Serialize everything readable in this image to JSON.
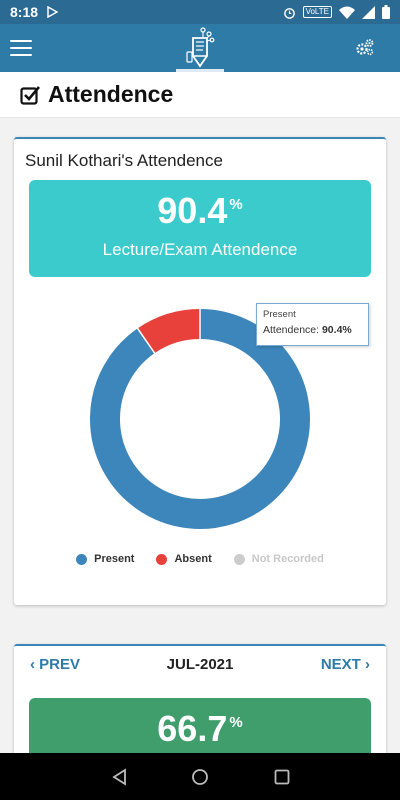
{
  "status_bar": {
    "time": "8:18",
    "network_badge": "VoLTE",
    "icons": [
      "play-store-icon",
      "alarm-icon",
      "wifi-icon",
      "signal-icon",
      "battery-icon"
    ]
  },
  "app_bar": {
    "icons": [
      "hamburger-menu-icon",
      "app-logo-icon",
      "gears-icon"
    ]
  },
  "page": {
    "title": "Attendence",
    "title_icon": "checkbox-icon"
  },
  "overall_card": {
    "student_title": "Sunil Kothari's Attendence",
    "percent": "90.4",
    "percent_sign": "%",
    "label": "Lecture/Exam Attendence",
    "tooltip": {
      "category": "Present",
      "prefix": "Attendence: ",
      "value": "90.4%"
    },
    "legend": [
      {
        "label": "Present",
        "color": "#3d86bc"
      },
      {
        "label": "Absent",
        "color": "#e8413c"
      },
      {
        "label": "Not Recorded",
        "color": "#cccccc"
      }
    ],
    "chart_data": {
      "type": "pie",
      "categories": [
        "Present",
        "Absent",
        "Not Recorded"
      ],
      "values": [
        90.4,
        9.6,
        0
      ],
      "colors": [
        "#3d86bc",
        "#e8413c",
        "#cccccc"
      ],
      "legend": "bottom"
    }
  },
  "monthly_card": {
    "prev_label": "PREV",
    "month": "JUL-2021",
    "next_label": "NEXT",
    "percent": "66.7",
    "percent_sign": "%"
  }
}
